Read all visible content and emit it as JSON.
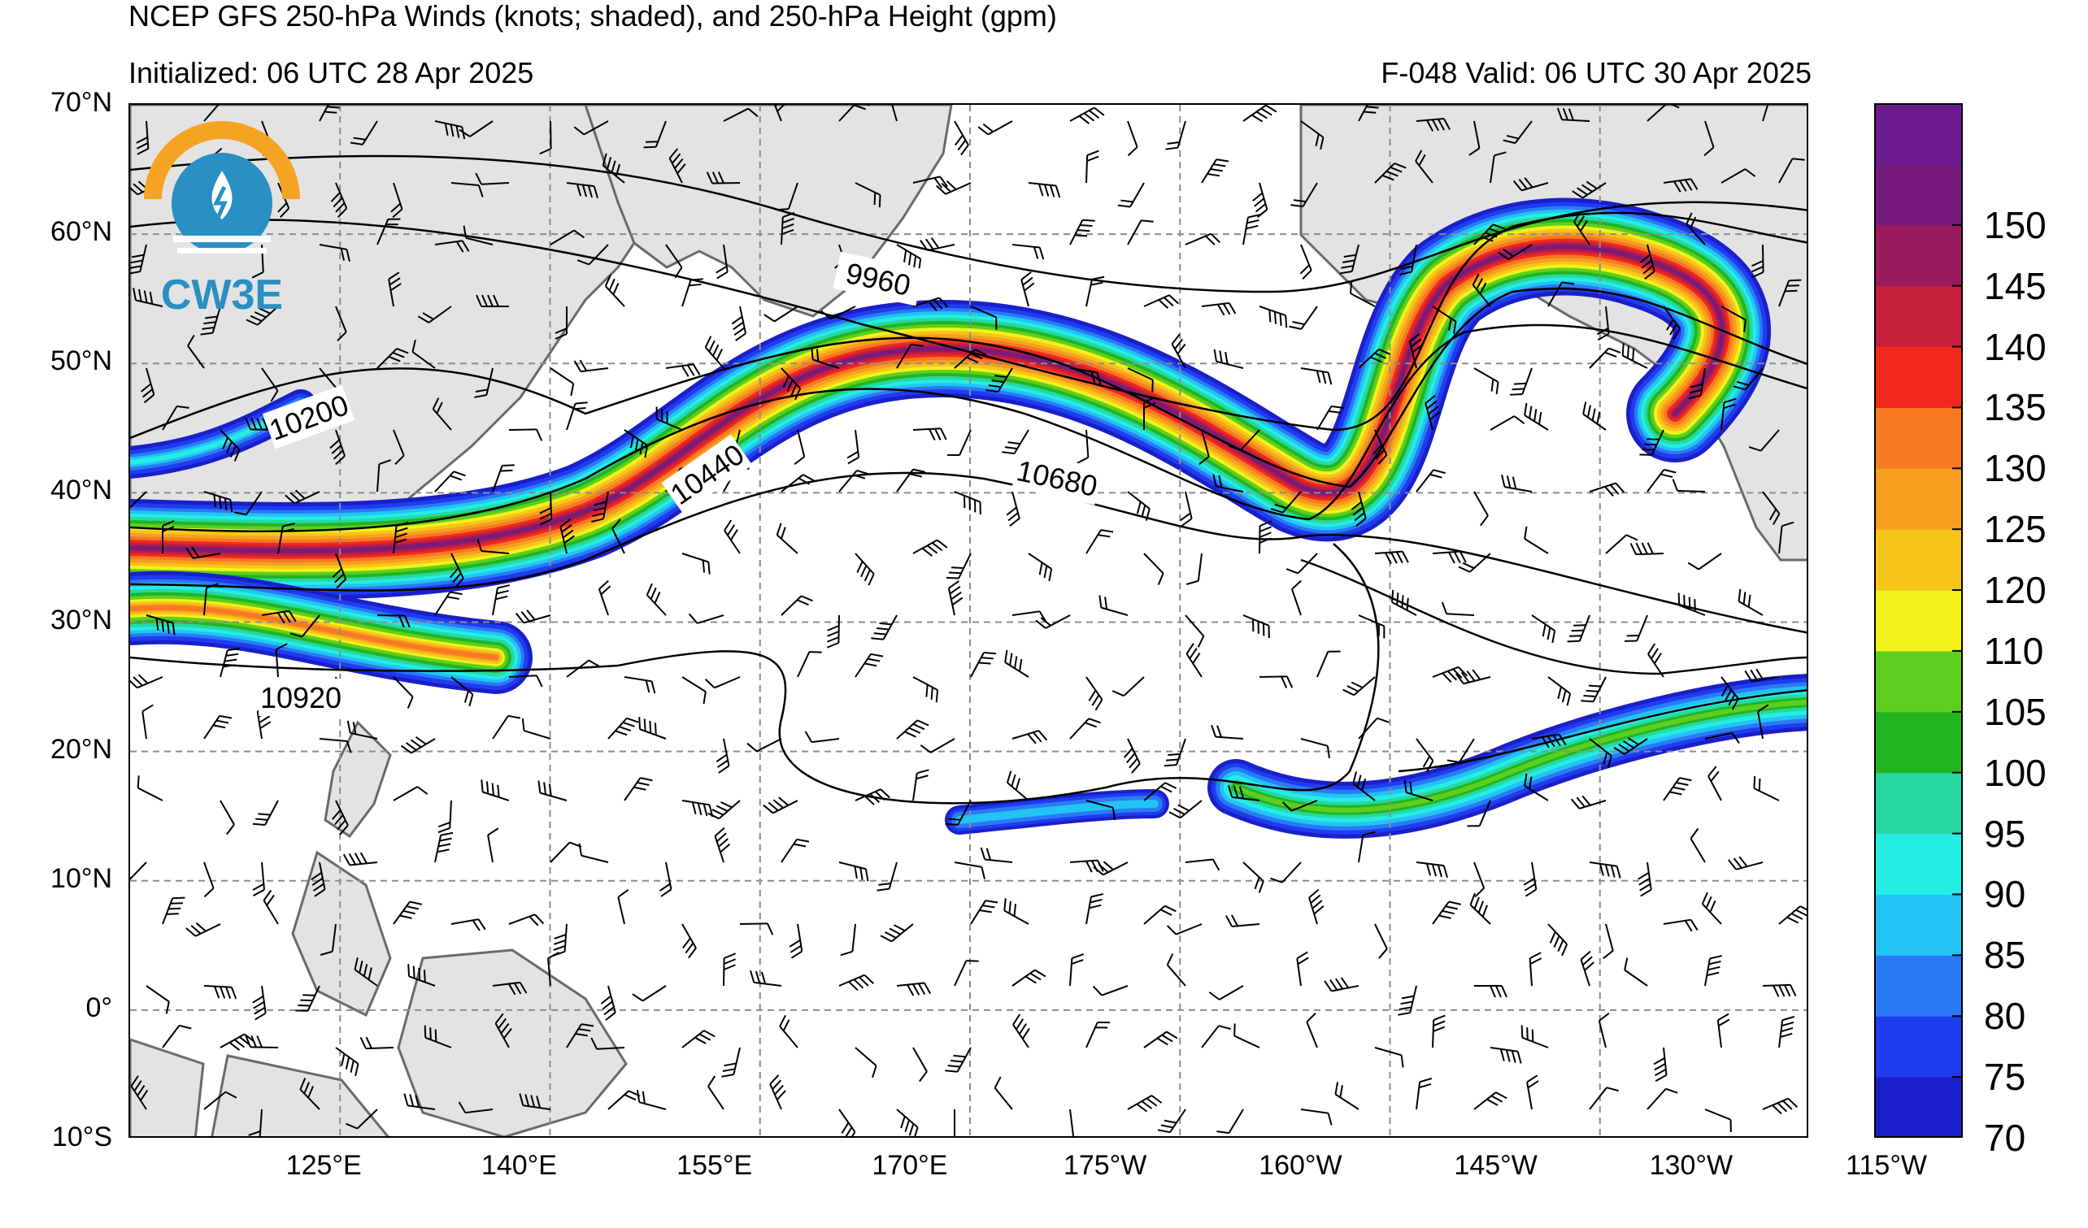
{
  "title": "NCEP GFS 250-hPa Winds (knots; shaded), and 250-hPa Height (gpm)",
  "init": "Initialized: 06 UTC 28 Apr 2025",
  "valid": "F-048  Valid: 06 UTC 30 Apr 2025",
  "logo_text": "CW3E",
  "lat_labels": [
    "70°N",
    "60°N",
    "50°N",
    "40°N",
    "30°N",
    "20°N",
    "10°N",
    "0°",
    "10°S"
  ],
  "lon_labels": [
    "125°E",
    "140°E",
    "155°E",
    "170°E",
    "175°W",
    "160°W",
    "145°W",
    "130°W",
    "115°W"
  ],
  "contour_labels": [
    "9960",
    "10200",
    "10440",
    "10680",
    "10920"
  ],
  "colorbar": {
    "levels": [
      "70",
      "75",
      "80",
      "85",
      "90",
      "95",
      "100",
      "105",
      "110",
      "120",
      "125",
      "130",
      "135",
      "140",
      "145",
      "150"
    ],
    "colors": [
      "#1a1fc9",
      "#1f3cf0",
      "#2a7af5",
      "#22c3f5",
      "#25ede4",
      "#26d9a2",
      "#22b522",
      "#5ecf1e",
      "#f2f21a",
      "#f7c51a",
      "#f7a01f",
      "#f77a22",
      "#f5281e",
      "#c8203a",
      "#9a1a5e",
      "#781a7c",
      "#6a1a8c"
    ],
    "colors_note": ""
  },
  "colors": {
    "land": "#e3e3e3",
    "coast": "#6a6a6a",
    "grid": "#8c8c8c",
    "contour": "#000000",
    "logo_orange": "#f5a323",
    "logo_blue": "#2a8fc2"
  }
}
